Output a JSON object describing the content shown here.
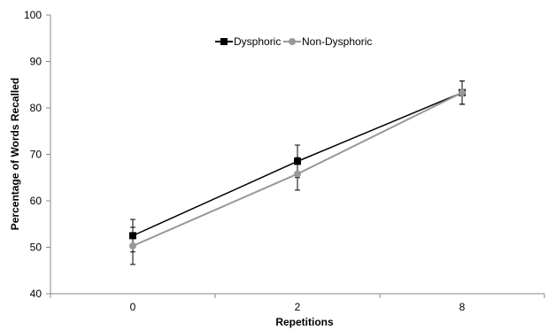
{
  "chart_data": {
    "type": "line",
    "title": "",
    "xlabel": "Repetitions",
    "ylabel": "Percentage of Words Recalled",
    "categories": [
      "0",
      "2",
      "8"
    ],
    "ylim": [
      40,
      100
    ],
    "yticks": [
      40,
      50,
      60,
      70,
      80,
      90,
      100
    ],
    "grid": false,
    "legend": {
      "position": "top-center"
    },
    "series": [
      {
        "name": "Dysphoric",
        "values": [
          52.5,
          68.5,
          83.3
        ],
        "errors": [
          3.5,
          3.5,
          2.5
        ],
        "color": "#000000",
        "marker": "square"
      },
      {
        "name": "Non-Dysphoric",
        "values": [
          50.3,
          65.8,
          83.3
        ],
        "errors": [
          4.0,
          3.5,
          2.5
        ],
        "color": "#999999",
        "marker": "circle"
      }
    ]
  }
}
